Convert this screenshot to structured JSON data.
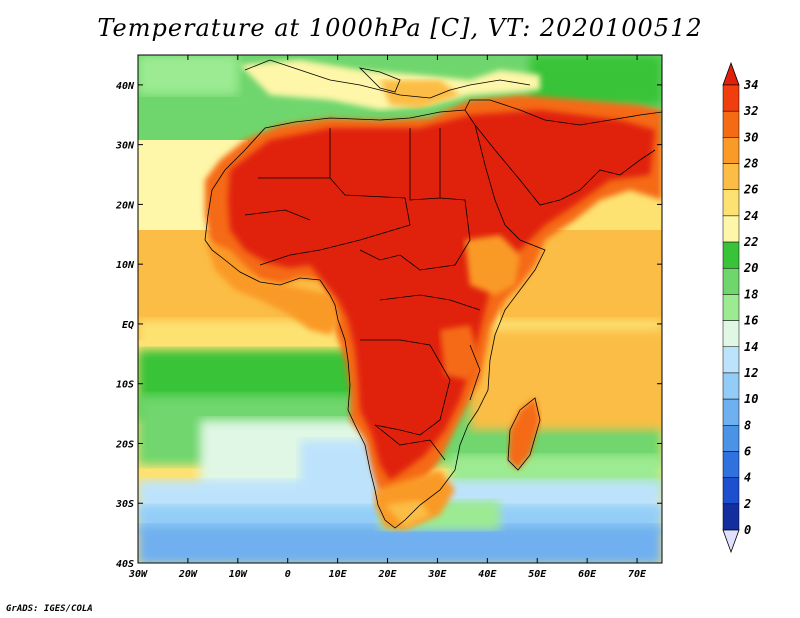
{
  "title": "Temperature at 1000hPa [C], VT: 2020100512",
  "credit": "GrADS: IGES/COLA",
  "map": {
    "lat_labels": [
      "40N",
      "30N",
      "20N",
      "10N",
      "EQ",
      "10S",
      "20S",
      "30S",
      "40S"
    ],
    "lon_labels": [
      "30W",
      "20W",
      "10W",
      "0",
      "10E",
      "20E",
      "30E",
      "40E",
      "50E",
      "60E",
      "70E"
    ],
    "lat_range": [
      -40,
      45
    ],
    "lon_range": [
      -30,
      75
    ]
  },
  "colorbar": {
    "labels": [
      "34",
      "32",
      "30",
      "28",
      "26",
      "24",
      "22",
      "20",
      "18",
      "16",
      "14",
      "12",
      "10",
      "8",
      "6",
      "4",
      "2",
      "0"
    ],
    "colors": [
      "#e0200a",
      "#f03e0f",
      "#f56b14",
      "#fa9a28",
      "#fbbd45",
      "#fde272",
      "#fef6a8",
      "#39c339",
      "#6fd66d",
      "#9ceb92",
      "#dff7e4",
      "#bde3fc",
      "#93cdf7",
      "#6fb0f1",
      "#4a93e7",
      "#2f72df",
      "#1e4fcf",
      "#132e9f",
      "#0a1a6e"
    ]
  }
}
